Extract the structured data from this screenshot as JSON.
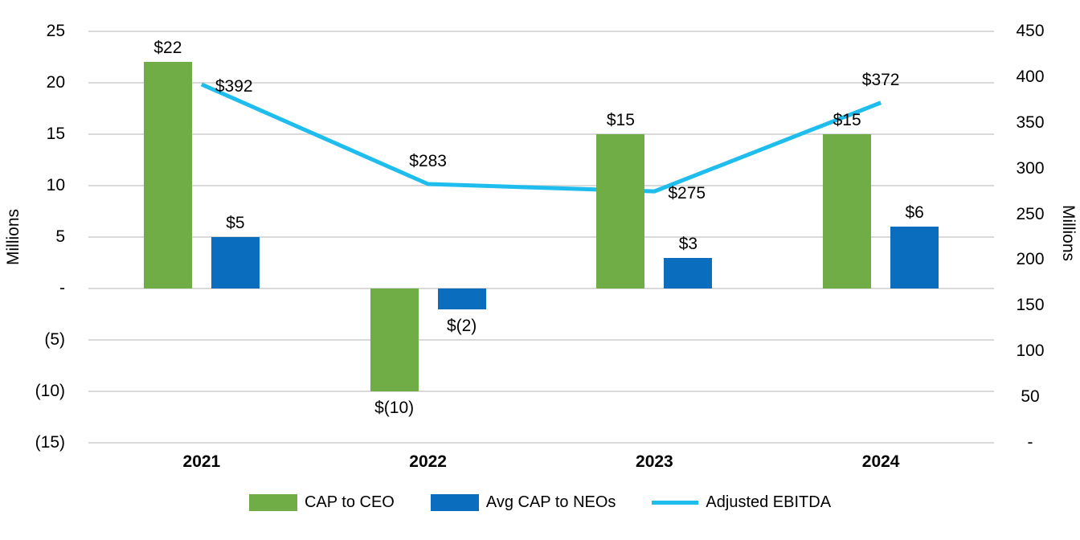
{
  "chart_data": {
    "type": "combo-bar-line",
    "title": "",
    "categories": [
      "2021",
      "2022",
      "2023",
      "2024"
    ],
    "series": [
      {
        "name": "CAP to CEO",
        "type": "bar",
        "axis": "left",
        "color": "#70AD47",
        "values": [
          22,
          -10,
          15,
          15
        ],
        "labels": [
          "$22",
          "$(10)",
          "$15",
          "$15"
        ]
      },
      {
        "name": "Avg CAP to NEOs",
        "type": "bar",
        "axis": "left",
        "color": "#0B6DBE",
        "values": [
          5,
          -2,
          3,
          6
        ],
        "labels": [
          "$5",
          "$(2)",
          "$3",
          "$6"
        ]
      },
      {
        "name": "Adjusted EBITDA",
        "type": "line",
        "axis": "right",
        "color": "#1FBDEE",
        "values": [
          392,
          283,
          275,
          372
        ],
        "labels": [
          "$392",
          "$283",
          "$275",
          "$372"
        ],
        "label_positions": [
          "right",
          "above",
          "right",
          "above"
        ]
      }
    ],
    "left_axis": {
      "title": "Millions",
      "max": 25,
      "min": -15,
      "ticks": [
        25,
        20,
        15,
        10,
        5,
        0,
        -5,
        -10,
        -15
      ],
      "tick_labels": [
        "25",
        "20",
        "15",
        "10",
        "5",
        "-",
        "(5)",
        "(10)",
        "(15)"
      ]
    },
    "right_axis": {
      "title": "Millions",
      "max": 450,
      "min": 0,
      "ticks": [
        450,
        400,
        350,
        300,
        250,
        200,
        150,
        100,
        50,
        0
      ],
      "tick_labels": [
        "450",
        "400",
        "350",
        "300",
        "250",
        "200",
        "150",
        "100",
        "50",
        "-"
      ]
    },
    "legend": [
      "CAP to CEO",
      "Avg CAP to NEOs",
      "Adjusted EBITDA"
    ],
    "legend_position": "bottom",
    "grid": "horizontal",
    "colors": {
      "grid": "#D9D9D9",
      "text": "#000000",
      "background": "#FFFFFF"
    }
  }
}
